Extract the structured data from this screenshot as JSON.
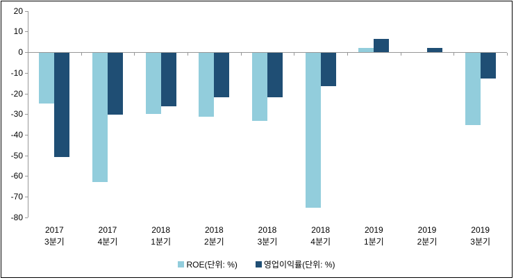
{
  "chart_data": {
    "type": "bar",
    "title": "",
    "xlabel": "",
    "ylabel": "",
    "categories": [
      {
        "year": "2017",
        "quarter": "3분기"
      },
      {
        "year": "2017",
        "quarter": "4분기"
      },
      {
        "year": "2018",
        "quarter": "1분기"
      },
      {
        "year": "2018",
        "quarter": "2분기"
      },
      {
        "year": "2018",
        "quarter": "3분기"
      },
      {
        "year": "2018",
        "quarter": "4분기"
      },
      {
        "year": "2019",
        "quarter": "1분기"
      },
      {
        "year": "2019",
        "quarter": "2분기"
      },
      {
        "year": "2019",
        "quarter": "3분기"
      }
    ],
    "series": [
      {
        "name": "ROE(단위: %)",
        "color": "#92CDDC",
        "values": [
          -24.5,
          -62.5,
          -29.5,
          -31,
          -33,
          -75,
          2,
          null,
          -35
        ]
      },
      {
        "name": "영업이익률(단위: %)",
        "color": "#1F4E74",
        "values": [
          -50.5,
          -30,
          -26,
          -21.5,
          -21.5,
          -16,
          6.5,
          2,
          -12.5
        ]
      }
    ],
    "ylim": [
      -80,
      20
    ],
    "yticks": [
      20,
      10,
      0,
      -10,
      -20,
      -30,
      -40,
      -50,
      -60,
      -70,
      -80
    ],
    "grid": false,
    "legend_position": "bottom-center",
    "axis_color": "#969696",
    "text_color": "#000000",
    "background_color": "#FFFFFF",
    "border_color": "#000000"
  }
}
